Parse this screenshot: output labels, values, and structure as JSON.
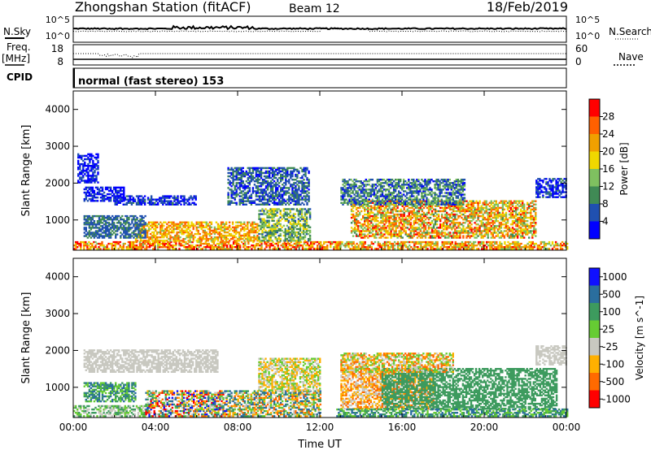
{
  "header": {
    "station": "Zhongshan Station (fitACF)",
    "beam": "Beam 12",
    "date": "18/Feb/2019"
  },
  "strip_labels": {
    "nsky": "N.Sky",
    "nsky_top": "10^5",
    "nsky_bottom": "10^0",
    "nsearch": "N.Search",
    "nsearch_top": "10^5",
    "nsearch_bottom": "10^0",
    "freq": "Freq.",
    "freq_unit": "[MHz]",
    "freq_top": "18",
    "freq_bottom": "8",
    "nave": "Nave",
    "nave_top": "60",
    "nave_bottom": "0",
    "cpid": "CPID",
    "cpid_text": "normal (fast stereo) 153"
  },
  "colors": {
    "power": [
      "#0000ff",
      "#2050b0",
      "#408a55",
      "#7fc060",
      "#f0d800",
      "#f0a000",
      "#ff6000",
      "#ff0000"
    ],
    "velocity": [
      "#ff0000",
      "#ff6a00",
      "#ffb000",
      "#c8c8c0",
      "#66cc33",
      "#3d9b5e",
      "#2a6e9e",
      "#1010ff"
    ]
  },
  "chart_data": [
    {
      "type": "heatmap",
      "name": "power",
      "xlabel": "",
      "ylabel": "Slant Range [km]",
      "x_ticks": [
        "00:00",
        "04:00",
        "08:00",
        "12:00",
        "16:00",
        "20:00",
        "00:00"
      ],
      "y_ticks": [
        1000,
        2000,
        3000,
        4000
      ],
      "xlim": [
        0,
        24
      ],
      "ylim": [
        180,
        4500
      ],
      "colorbar": {
        "label": "Power [dB]",
        "ticks": [
          "4",
          "8",
          "12",
          "16",
          "20",
          "24",
          "28"
        ],
        "range": [
          0,
          30
        ]
      },
      "echo_regions": [
        {
          "t0": 0.0,
          "t1": 13.0,
          "r0": 200,
          "r1": 420,
          "v0": 14,
          "v1": 30
        },
        {
          "t0": 12.8,
          "t1": 24.0,
          "r0": 200,
          "r1": 420,
          "v0": 12,
          "v1": 28
        },
        {
          "t0": 3.0,
          "t1": 9.0,
          "r0": 420,
          "r1": 950,
          "v0": 14,
          "v1": 26
        },
        {
          "t0": 0.5,
          "t1": 3.5,
          "r0": 500,
          "r1": 1100,
          "v0": 4,
          "v1": 10
        },
        {
          "t0": 9.0,
          "t1": 11.5,
          "r0": 420,
          "r1": 1300,
          "v0": 6,
          "v1": 18
        },
        {
          "t0": 13.5,
          "t1": 22.5,
          "r0": 500,
          "r1": 1500,
          "v0": 10,
          "v1": 28
        },
        {
          "t0": 13.0,
          "t1": 19.0,
          "r0": 1400,
          "r1": 2100,
          "v0": 2,
          "v1": 14
        },
        {
          "t0": 0.5,
          "t1": 2.5,
          "r0": 1500,
          "r1": 1900,
          "v0": 0,
          "v1": 6
        },
        {
          "t0": 2.0,
          "t1": 6.0,
          "r0": 1400,
          "r1": 1650,
          "v0": 0,
          "v1": 8
        },
        {
          "t0": 7.5,
          "t1": 11.5,
          "r0": 1400,
          "r1": 2400,
          "v0": 2,
          "v1": 10
        },
        {
          "t0": 22.5,
          "t1": 24.0,
          "r0": 1600,
          "r1": 2100,
          "v0": 0,
          "v1": 8
        },
        {
          "t0": 0.2,
          "t1": 1.2,
          "r0": 2000,
          "r1": 2800,
          "v0": 0,
          "v1": 6
        }
      ]
    },
    {
      "type": "heatmap",
      "name": "velocity",
      "xlabel": "Time UT",
      "ylabel": "Slant Range [km]",
      "x_ticks": [
        "00:00",
        "04:00",
        "08:00",
        "12:00",
        "16:00",
        "20:00",
        "00:00"
      ],
      "y_ticks": [
        1000,
        2000,
        3000,
        4000
      ],
      "xlim": [
        0,
        24
      ],
      "ylim": [
        180,
        4500
      ],
      "colorbar": {
        "label": "Velocity [m s^-1]",
        "ticks": [
          "1000",
          "500",
          "100",
          "25",
          "-25",
          "-100",
          "-500",
          "-1000"
        ],
        "range": [
          -1200,
          1200
        ]
      },
      "echo_regions": [
        {
          "t0": 0.0,
          "t1": 3.5,
          "r0": 200,
          "r1": 500,
          "v0": 3,
          "v1": 5
        },
        {
          "t0": 3.5,
          "t1": 7.5,
          "r0": 200,
          "r1": 900,
          "v0": 0,
          "v1": 7
        },
        {
          "t0": 7.5,
          "t1": 12.0,
          "r0": 200,
          "r1": 900,
          "v0": 1,
          "v1": 6
        },
        {
          "t0": 0.5,
          "t1": 3.0,
          "r0": 600,
          "r1": 1100,
          "v0": 4,
          "v1": 6
        },
        {
          "t0": 9.0,
          "t1": 12.0,
          "r0": 900,
          "r1": 1800,
          "v0": 2,
          "v1": 4
        },
        {
          "t0": 13.0,
          "t1": 17.5,
          "r0": 400,
          "r1": 1500,
          "v0": 1,
          "v1": 3
        },
        {
          "t0": 15.0,
          "t1": 23.5,
          "r0": 400,
          "r1": 1500,
          "v0": 5,
          "v1": 5
        },
        {
          "t0": 13.0,
          "t1": 18.5,
          "r0": 1400,
          "r1": 1900,
          "v0": 1,
          "v1": 4
        },
        {
          "t0": 0.5,
          "t1": 7.0,
          "r0": 1400,
          "r1": 2000,
          "v0": 3,
          "v1": 3
        },
        {
          "t0": 22.5,
          "t1": 24.0,
          "r0": 1600,
          "r1": 2100,
          "v0": 3,
          "v1": 3
        },
        {
          "t0": 12.8,
          "t1": 24.0,
          "r0": 200,
          "r1": 420,
          "v0": 4,
          "v1": 6
        }
      ]
    }
  ]
}
